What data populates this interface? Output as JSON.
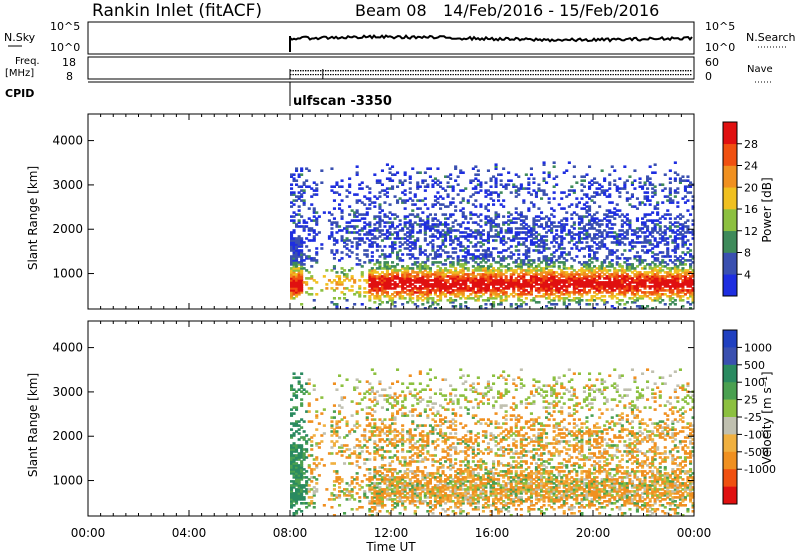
{
  "header": {
    "station": "Rankin Inlet (fitACF)",
    "beam": "Beam 08",
    "dates": "14/Feb/2016 - 15/Feb/2016"
  },
  "strip_panels": {
    "nsky": {
      "label": "N.Sky",
      "ticks": [
        "10^5",
        "10^0"
      ]
    },
    "nsearch": {
      "label": "N.Search",
      "ticks": [
        "10^5",
        "10^0"
      ]
    },
    "freq": {
      "label_top": "Freq.",
      "label_bottom": "[MHz]",
      "ticks": [
        "18",
        "8"
      ]
    },
    "nave": {
      "label": "Nave",
      "ticks": [
        "60",
        "0"
      ]
    },
    "cpid": {
      "label": "CPID",
      "value": "ulfscan -3350"
    }
  },
  "colors": {
    "power": [
      "#1e2ee0",
      "#3a50b0",
      "#3e8a5a",
      "#8cc040",
      "#f0c020",
      "#f09020",
      "#f05010",
      "#e01010"
    ],
    "velocity": [
      "#e01010",
      "#f05010",
      "#f09020",
      "#f0b040",
      "#c0c0b0",
      "#8cc040",
      "#4aa050",
      "#2a8a60",
      "#3a50b0",
      "#2040c0"
    ]
  },
  "chart_data": [
    {
      "type": "heatmap",
      "title": "",
      "ylabel": "Slant Range [km]",
      "xlabel": "",
      "ylim": [
        200,
        4600
      ],
      "xlim": [
        0,
        24
      ],
      "yticks": [
        "1000",
        "2000",
        "3000",
        "4000"
      ],
      "colorbar": {
        "label": "Power [dB]",
        "ticks": [
          "4",
          "8",
          "12",
          "16",
          "20",
          "24",
          "28"
        ],
        "range": [
          0,
          32
        ]
      },
      "data_start_hour": 8.0
    },
    {
      "type": "heatmap",
      "title": "",
      "ylabel": "Slant Range [km]",
      "xlabel": "Time UT",
      "ylim": [
        200,
        4600
      ],
      "xlim": [
        0,
        24
      ],
      "yticks": [
        "1000",
        "2000",
        "3000",
        "4000"
      ],
      "xticks": [
        "00:00",
        "04:00",
        "08:00",
        "12:00",
        "16:00",
        "20:00",
        "00:00"
      ],
      "colorbar": {
        "label": "Velocity [m s⁻¹]",
        "ticks": [
          "1000",
          "500",
          "100",
          "25",
          "-25",
          "-100",
          "-500",
          "-1000"
        ]
      },
      "data_start_hour": 8.0
    }
  ]
}
